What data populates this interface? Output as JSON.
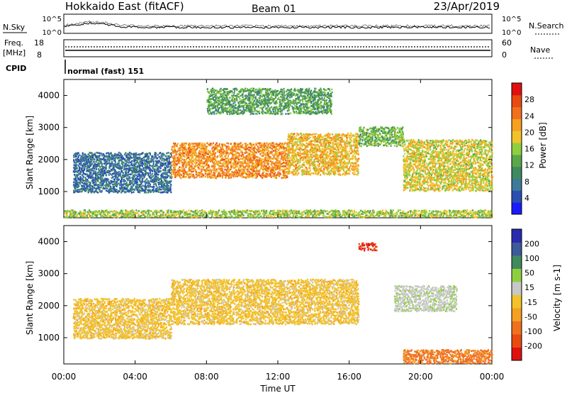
{
  "header": {
    "title": "Hokkaido East (fitACF)",
    "beam": "Beam 01",
    "date": "23/Apr/2019"
  },
  "noise_panel": {
    "left_label": "N.Sky",
    "right_label": "N.Search",
    "left_ticks": [
      "10^5",
      "10^0"
    ],
    "right_ticks": [
      "10^5",
      "10^0"
    ]
  },
  "freq_panel": {
    "left_label": "Freq.",
    "left_unit": "[MHz]",
    "left_ticks": [
      "18",
      "8"
    ],
    "right_label": "Nave",
    "right_ticks": [
      "60",
      "0"
    ]
  },
  "cpid": {
    "label": "CPID",
    "mode": "normal (fast) 151"
  },
  "x_axis": {
    "label": "Time UT",
    "ticks": [
      "00:00",
      "04:00",
      "08:00",
      "12:00",
      "16:00",
      "20:00",
      "00:00"
    ]
  },
  "colors": {
    "power_scale": [
      "#1a1aff",
      "#2a4fb0",
      "#3d7a9a",
      "#3f8a5f",
      "#5aa84a",
      "#8fcf3f",
      "#f2c22a",
      "#f4a020",
      "#f07020",
      "#e84a10",
      "#e01010"
    ],
    "velocity_scale": [
      "#e01010",
      "#e84a10",
      "#f07020",
      "#f4a020",
      "#f2c22a",
      "#c8c8c8",
      "#8fcf3f",
      "#3f8a5f",
      "#3d5a9a",
      "#2a2ab0"
    ]
  },
  "chart_data": [
    {
      "type": "heatmap",
      "name": "power",
      "ylabel": "Slant Range [km]",
      "xlabel": "Time UT",
      "x_range_hours": [
        0,
        24
      ],
      "ylim": [
        180,
        4500
      ],
      "y_ticks": [
        1000,
        2000,
        3000,
        4000
      ],
      "colorbar": {
        "label": "Power [dB]",
        "range": [
          0,
          32
        ],
        "ticks": [
          4,
          8,
          12,
          16,
          20,
          24,
          28
        ]
      },
      "echo_regions": [
        {
          "t_start": 0.5,
          "t_end": 6.0,
          "r_min": 950,
          "r_max": 2200,
          "level": 7
        },
        {
          "t_start": 6.0,
          "t_end": 12.5,
          "r_min": 1400,
          "r_max": 2500,
          "level": 23
        },
        {
          "t_start": 12.5,
          "t_end": 16.5,
          "r_min": 1500,
          "r_max": 2800,
          "level": 20
        },
        {
          "t_start": 16.5,
          "t_end": 19.0,
          "r_min": 2400,
          "r_max": 3000,
          "level": 14
        },
        {
          "t_start": 19.0,
          "t_end": 24.0,
          "r_min": 1000,
          "r_max": 2600,
          "level": 18
        },
        {
          "t_start": 8.0,
          "t_end": 15.0,
          "r_min": 3400,
          "r_max": 4200,
          "level": 12
        },
        {
          "t_start": 0.0,
          "t_end": 24.0,
          "r_min": 180,
          "r_max": 400,
          "level": 16
        }
      ]
    },
    {
      "type": "heatmap",
      "name": "velocity",
      "ylabel": "Slant Range [km]",
      "xlabel": "Time UT",
      "x_range_hours": [
        0,
        24
      ],
      "ylim": [
        180,
        4500
      ],
      "y_ticks": [
        1000,
        2000,
        3000,
        4000
      ],
      "colorbar": {
        "label": "Velocity [m s-1]",
        "range": [
          -250,
          250
        ],
        "ticks": [
          200,
          100,
          50,
          15,
          -15,
          -50,
          -100,
          -200
        ]
      },
      "echo_regions": [
        {
          "t_start": 0.5,
          "t_end": 6.0,
          "r_min": 950,
          "r_max": 2200,
          "value": 0
        },
        {
          "t_start": 6.0,
          "t_end": 16.5,
          "r_min": 1400,
          "r_max": 2800,
          "value": 0
        },
        {
          "t_start": 16.5,
          "t_end": 17.5,
          "r_min": 3700,
          "r_max": 3950,
          "value": -200
        },
        {
          "t_start": 18.5,
          "t_end": 22.0,
          "r_min": 1800,
          "r_max": 2600,
          "value": 40
        },
        {
          "t_start": 19.0,
          "t_end": 24.0,
          "r_min": 180,
          "r_max": 600,
          "value": -60
        }
      ]
    }
  ]
}
